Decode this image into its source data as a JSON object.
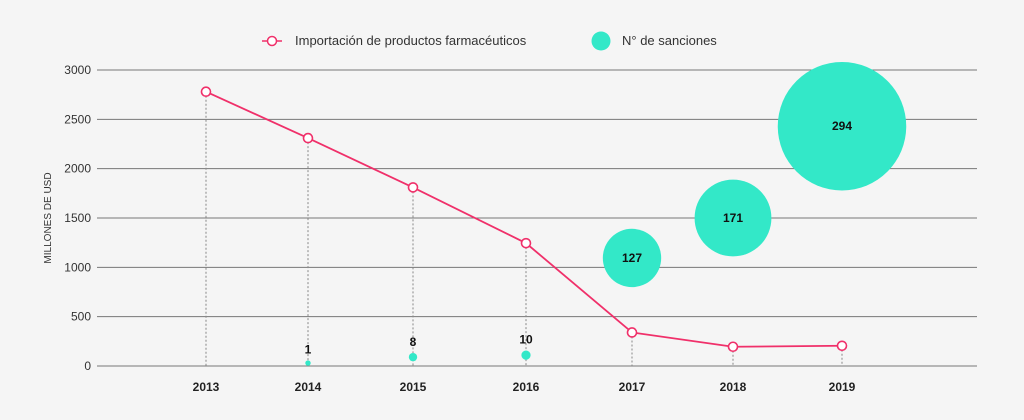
{
  "chart_data": {
    "type": "line+bubble",
    "title": "",
    "xlabel": "",
    "ylabel": "MILLONES DE USD",
    "ylim": [
      0,
      3000
    ],
    "yticks": [
      0,
      500,
      1000,
      1500,
      2000,
      2500,
      3000
    ],
    "grid": true,
    "legend_position": "top",
    "categories": [
      "2013",
      "2014",
      "2015",
      "2016",
      "2017",
      "2018",
      "2019"
    ],
    "series": [
      {
        "name": "Importación de productos farmacéuticos",
        "type": "line",
        "color": "#f0306a",
        "values": [
          2780,
          2310,
          1810,
          1245,
          340,
          195,
          205
        ]
      },
      {
        "name": "N° de sanciones",
        "type": "bubble",
        "color": "#33e8c8",
        "points": [
          {
            "x": "2014",
            "y": 30,
            "size": 1
          },
          {
            "x": "2015",
            "y": 90,
            "size": 8
          },
          {
            "x": "2016",
            "y": 110,
            "size": 10
          },
          {
            "x": "2017",
            "y": 1095,
            "size": 127
          },
          {
            "x": "2018",
            "y": 1500,
            "size": 171
          },
          {
            "x": "2019",
            "y": 2430,
            "size": 294
          }
        ]
      }
    ]
  }
}
